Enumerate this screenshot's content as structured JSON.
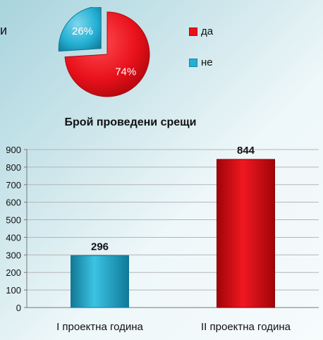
{
  "page": {
    "left_fragment": "и"
  },
  "colors": {
    "red": "#e8111b",
    "red_dark": "#a6050b",
    "blue": "#23b0d4",
    "blue_dark": "#127896",
    "grid": "#b5b5b5"
  },
  "chart_data": [
    {
      "type": "pie",
      "title": "",
      "slices": [
        {
          "label": "да",
          "value": 74,
          "value_label": "74%",
          "color": "#e8111b"
        },
        {
          "label": "не",
          "value": 26,
          "value_label": "26%",
          "color": "#23b0d4"
        }
      ],
      "legend_position": "right",
      "exploded": [
        "не"
      ]
    },
    {
      "type": "bar",
      "title": "Брой проведени срещи",
      "categories": [
        "I проектна година",
        "II проектна година"
      ],
      "values": [
        296,
        844
      ],
      "value_labels": [
        "296",
        "844"
      ],
      "colors": [
        "#23b0d4",
        "#e8111b"
      ],
      "xlabel": "",
      "ylabel": "",
      "ylim": [
        0,
        900
      ],
      "yticks": [
        "0",
        "100",
        "200",
        "300",
        "400",
        "500",
        "600",
        "700",
        "800",
        "900"
      ],
      "grid": true
    }
  ]
}
